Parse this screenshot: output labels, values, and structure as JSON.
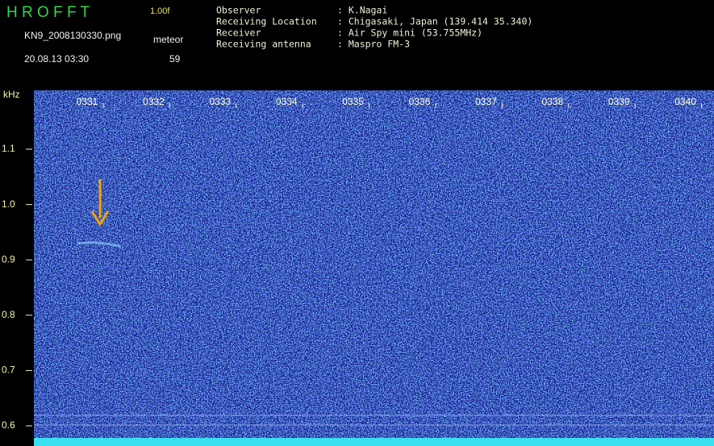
{
  "header": {
    "app_name": "H R O F F T",
    "version": "1.00f",
    "filename": "KN9_2008130330.png",
    "count_label": "meteor",
    "datetime": "20.08.13 03:30",
    "count": "59",
    "info": [
      {
        "label": "Observer",
        "value": ": K.Nagai"
      },
      {
        "label": "Receiving Location",
        "value": ": Chigasaki, Japan (139.414 35.340)"
      },
      {
        "label": "Receiver",
        "value": ": Air Spy mini (53.755MHz)"
      },
      {
        "label": "Receiving antenna",
        "value": ": Maspro FM-3"
      }
    ]
  },
  "spectrogram": {
    "y_unit": "kHz",
    "y_labels": [
      "1.1",
      "1.0",
      "0.9",
      "0.8",
      "0.7",
      "0.6"
    ],
    "x_labels": [
      "0331",
      "0332",
      "0333",
      "0334",
      "0335",
      "0336",
      "0337",
      "0338",
      "0339",
      "0340"
    ]
  }
}
